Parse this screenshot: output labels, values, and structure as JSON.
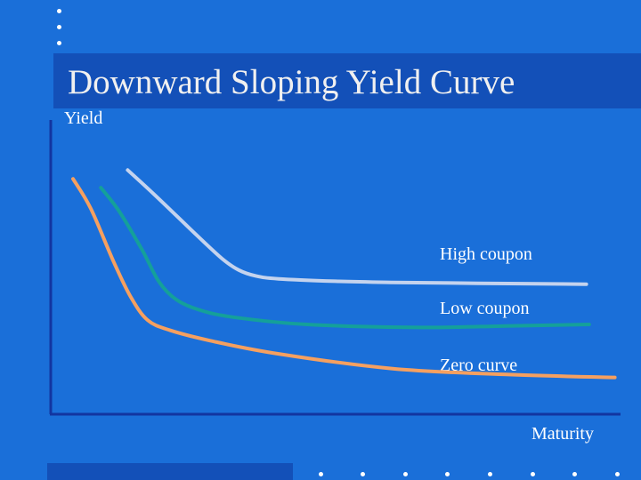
{
  "slide": {
    "title": "Downward Sloping Yield Curve"
  },
  "colors": {
    "background": "#1a6fd9",
    "title_bar": "#1350b8",
    "axis": "#1235a0",
    "high_coupon": "#c4d3ee",
    "low_coupon": "#14a09a",
    "zero_curve": "#f5a060"
  },
  "chart_data": {
    "type": "line",
    "title": "Downward Sloping Yield Curve",
    "xlabel": "Maturity",
    "ylabel": "Yield",
    "grid": false,
    "xlim": [
      0,
      100
    ],
    "ylim": [
      0,
      100
    ],
    "series": [
      {
        "name": "High coupon",
        "x": [
          13.5,
          18,
          25,
          30,
          33,
          36,
          40,
          50,
          60,
          75,
          94
        ],
        "values": [
          83,
          75,
          62,
          53,
          49,
          47,
          46,
          45.2,
          44.8,
          44.5,
          44.2
        ]
      },
      {
        "name": "Low coupon",
        "x": [
          8.8,
          12,
          16,
          19,
          22,
          26,
          32,
          45,
          65,
          80,
          94.5
        ],
        "values": [
          77,
          69,
          56,
          45,
          39,
          35.5,
          33,
          30.5,
          29.5,
          30,
          30.5
        ]
      },
      {
        "name": "Zero curve",
        "x": [
          3.9,
          7,
          11,
          14,
          17,
          21,
          28,
          40,
          60,
          80,
          99
        ],
        "values": [
          80,
          70,
          52,
          40,
          32,
          28.5,
          25,
          20.5,
          15.5,
          13.5,
          12.5
        ]
      }
    ]
  }
}
